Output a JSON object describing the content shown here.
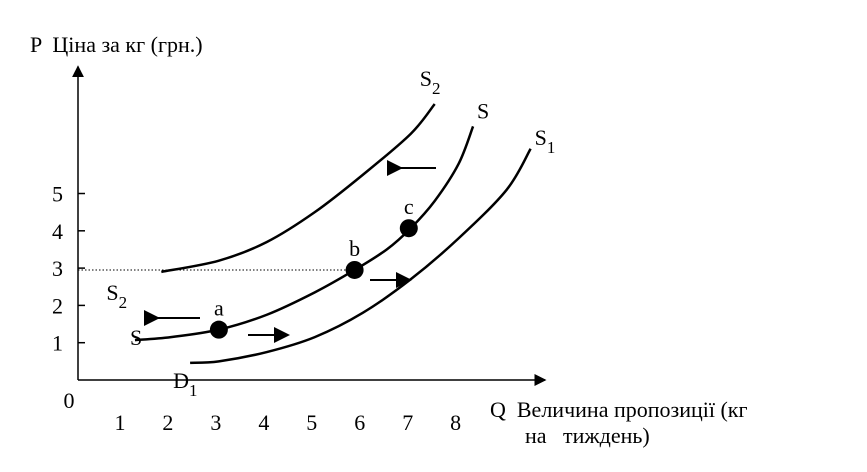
{
  "chart_data": {
    "type": "line",
    "y_label": "P  Ціна за кг (грн.)",
    "x_label": [
      "Q  Величина пропозиції (кг",
      "на   тиждень)"
    ],
    "xlim": [
      0,
      9.8
    ],
    "ylim": [
      0,
      8.4
    ],
    "xticks": [
      0,
      1,
      2,
      3,
      4,
      5,
      6,
      7,
      8
    ],
    "yticks": [
      1,
      2,
      3,
      4,
      5
    ],
    "series": [
      {
        "name": "S",
        "name_sub": "2",
        "start_label": "S",
        "start_label_sub": "2",
        "color": "#000000",
        "x": [
          1.8,
          3,
          4,
          5,
          6,
          7,
          7.5
        ],
        "values": [
          2.9,
          3.2,
          3.7,
          4.5,
          5.5,
          6.6,
          7.4
        ]
      },
      {
        "name": "S",
        "start_label": "S",
        "color": "#000000",
        "x": [
          1.25,
          2,
          3,
          4,
          5,
          5.83,
          6.5,
          7,
          7.5,
          8,
          8.3
        ],
        "values": [
          1.07,
          1.15,
          1.35,
          1.75,
          2.35,
          2.95,
          3.5,
          4.07,
          4.8,
          5.8,
          6.8
        ]
      },
      {
        "name": "S",
        "name_sub": "1",
        "start_label": "D",
        "start_label_sub": "1",
        "color": "#000000",
        "x": [
          2.4,
          3,
          4,
          5,
          6,
          7,
          8,
          9,
          9.5
        ],
        "values": [
          0.46,
          0.5,
          0.75,
          1.15,
          1.8,
          2.7,
          3.8,
          5.1,
          6.2
        ]
      }
    ],
    "points": [
      {
        "label": "a",
        "x": 3,
        "y": 1.35
      },
      {
        "label": "b",
        "x": 5.83,
        "y": 2.95
      },
      {
        "label": "c",
        "x": 6.96,
        "y": 4.07
      }
    ]
  }
}
